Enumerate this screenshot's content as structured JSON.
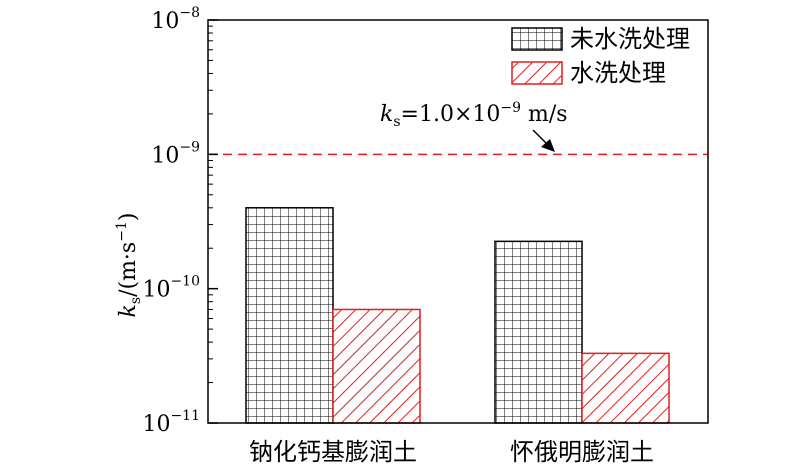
{
  "chart_data": {
    "type": "bar",
    "yscale": "log",
    "ylim": [
      1e-11,
      1e-08
    ],
    "categories": [
      "钠化钙基膨润土",
      "怀俄明膨润土"
    ],
    "series": [
      {
        "name": "未水洗处理",
        "values": [
          4e-10,
          2.25e-10
        ],
        "pattern": "grid",
        "color": "#000000"
      },
      {
        "name": "水洗处理",
        "values": [
          7e-11,
          3.3e-11
        ],
        "pattern": "hatch",
        "color": "#e02020"
      }
    ],
    "yticks": [
      {
        "base": "10",
        "exp": "−11",
        "value": 1e-11
      },
      {
        "base": "10",
        "exp": "−10",
        "value": 1e-10
      },
      {
        "base": "10",
        "exp": "−9",
        "value": 1e-09
      },
      {
        "base": "10",
        "exp": "−8",
        "value": 1e-08
      }
    ],
    "ylabel": {
      "var": "k",
      "sub": "s",
      "rest": "/(m·s",
      "sup": "−1",
      "close": ")"
    },
    "reference_line": {
      "value": 1e-09,
      "color": "#e02020",
      "style": "dashed"
    },
    "annotation": {
      "var": "k",
      "sub": "s",
      "text1": "=1.0×10",
      "sup": "−9",
      "text2": " m/s"
    },
    "legend_position": "top-right",
    "grid": false
  }
}
